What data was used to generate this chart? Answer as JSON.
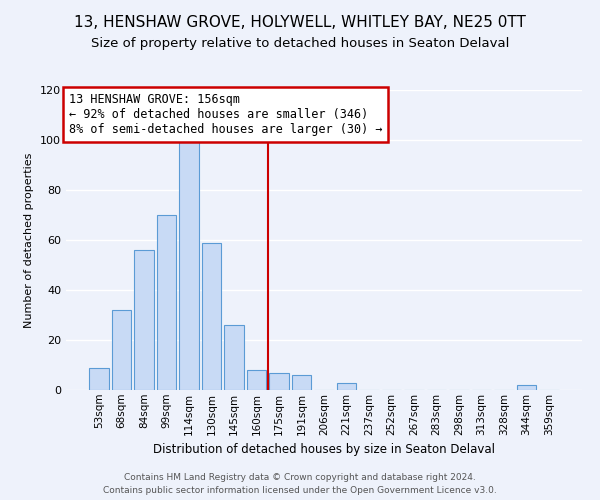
{
  "title": "13, HENSHAW GROVE, HOLYWELL, WHITLEY BAY, NE25 0TT",
  "subtitle": "Size of property relative to detached houses in Seaton Delaval",
  "xlabel": "Distribution of detached houses by size in Seaton Delaval",
  "ylabel": "Number of detached properties",
  "bar_labels": [
    "53sqm",
    "68sqm",
    "84sqm",
    "99sqm",
    "114sqm",
    "130sqm",
    "145sqm",
    "160sqm",
    "175sqm",
    "191sqm",
    "206sqm",
    "221sqm",
    "237sqm",
    "252sqm",
    "267sqm",
    "283sqm",
    "298sqm",
    "313sqm",
    "328sqm",
    "344sqm",
    "359sqm"
  ],
  "bar_values": [
    9,
    32,
    56,
    70,
    100,
    59,
    26,
    8,
    7,
    6,
    0,
    3,
    0,
    0,
    0,
    0,
    0,
    0,
    0,
    2,
    0
  ],
  "bar_color": "#c8daf5",
  "bar_edge_color": "#5b9bd5",
  "property_line_x": 7.5,
  "annotation_title": "13 HENSHAW GROVE: 156sqm",
  "annotation_line1": "← 92% of detached houses are smaller (346)",
  "annotation_line2": "8% of semi-detached houses are larger (30) →",
  "annotation_box_color": "#ffffff",
  "annotation_box_edge": "#cc0000",
  "vline_color": "#cc0000",
  "footer_line1": "Contains HM Land Registry data © Crown copyright and database right 2024.",
  "footer_line2": "Contains public sector information licensed under the Open Government Licence v3.0.",
  "ylim": [
    0,
    120
  ],
  "yticks": [
    0,
    20,
    40,
    60,
    80,
    100,
    120
  ],
  "background_color": "#eef2fb",
  "grid_color": "#ffffff",
  "title_fontsize": 11,
  "subtitle_fontsize": 9.5,
  "annotation_fontsize": 8.5,
  "footer_fontsize": 6.5,
  "ylabel_fontsize": 8,
  "xlabel_fontsize": 8.5
}
